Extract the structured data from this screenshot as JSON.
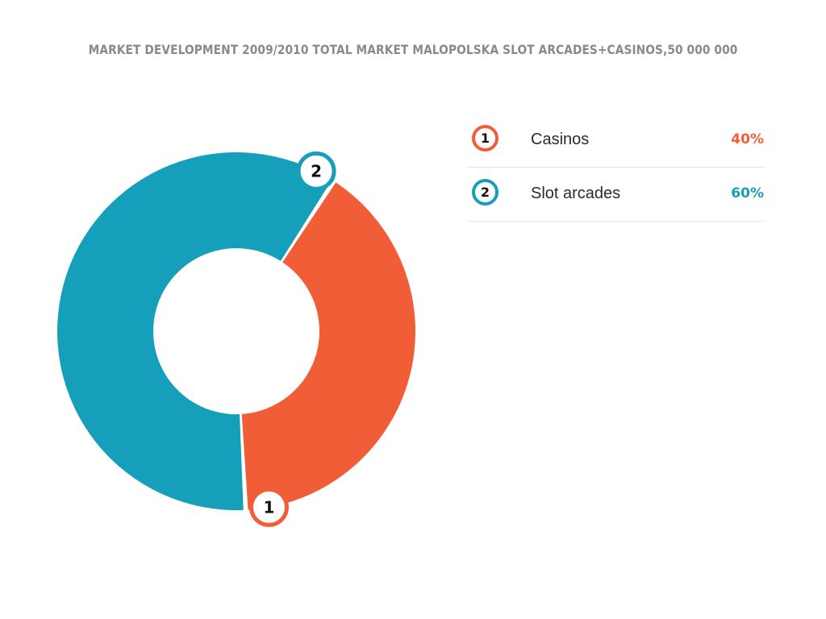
{
  "title": "MARKET DEVELOPMENT  2009/2010 TOTAL MARKET MALOPOLSKA SLOT ARCADES+CASINOS,50 000 000",
  "colors": {
    "casinos": "#f15d36",
    "slot_arcades": "#169fbb"
  },
  "legend": {
    "items": [
      {
        "number": "1",
        "label": "Casinos",
        "value": "40%",
        "color": "#f15d36"
      },
      {
        "number": "2",
        "label": "Slot arcades",
        "value": "60%",
        "color": "#169fbb"
      }
    ]
  },
  "chart_data": {
    "type": "pie",
    "variant": "donut",
    "title": "MARKET DEVELOPMENT  2009/2010 TOTAL MARKET MALOPOLSKA SLOT ARCADES+CASINOS,50 000 000",
    "categories": [
      "Casinos",
      "Slot arcades"
    ],
    "values": [
      40,
      60
    ],
    "slice_labels": [
      "1",
      "2"
    ],
    "colors": [
      "#f15d36",
      "#169fbb"
    ],
    "unit": "%",
    "legend_position": "right"
  }
}
